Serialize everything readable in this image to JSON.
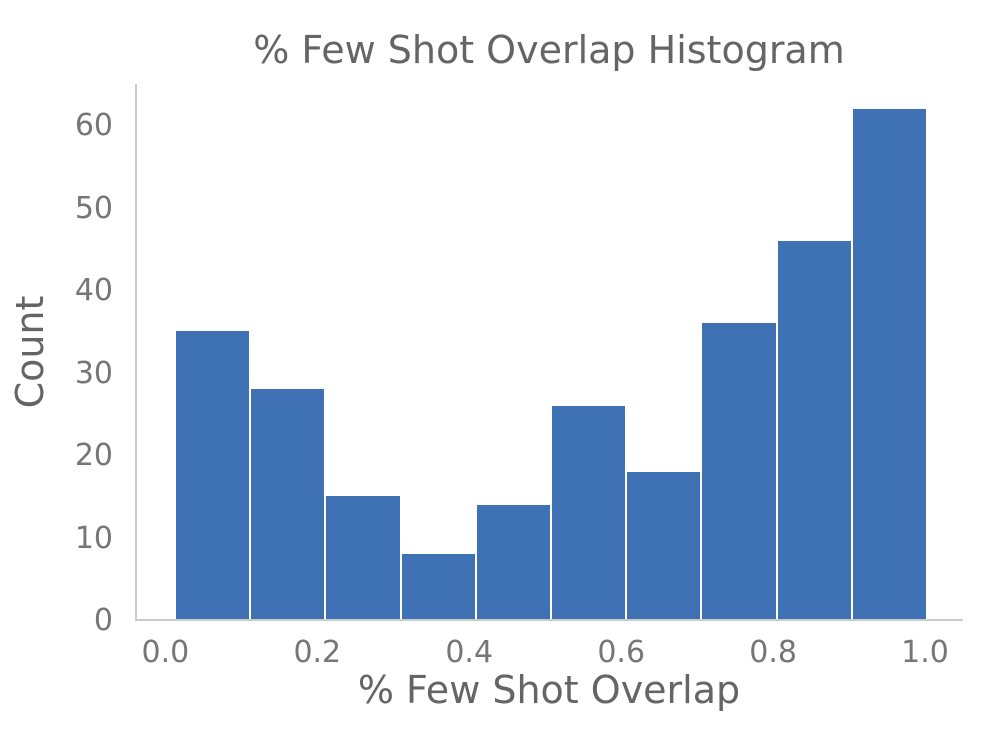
{
  "chart_data": {
    "type": "bar",
    "subtype": "histogram",
    "title": "% Few Shot Overlap Histogram",
    "xlabel": "% Few Shot Overlap",
    "ylabel": "Count",
    "bin_edges": [
      0.01,
      0.109,
      0.208,
      0.307,
      0.406,
      0.505,
      0.604,
      0.703,
      0.802,
      0.901,
      1.0
    ],
    "values": [
      35,
      28,
      15,
      8,
      14,
      26,
      18,
      36,
      46,
      62
    ],
    "x_tick_labels": [
      "0.0",
      "0.2",
      "0.4",
      "0.6",
      "0.8",
      "1.0"
    ],
    "x_tick_values": [
      0.0,
      0.2,
      0.4,
      0.6,
      0.8,
      1.0
    ],
    "y_tick_values": [
      0,
      10,
      20,
      30,
      40,
      50,
      60
    ],
    "xlim": [
      -0.04,
      1.05
    ],
    "ylim": [
      0,
      65.1
    ],
    "grid": false,
    "legend": null,
    "colors": {
      "bar": "#3E72B5",
      "bar_edge": "#FFFFFF",
      "axis": "#CBCBCB",
      "title_text": "#656565",
      "tick_text": "#767676",
      "background": "#FFFFFF"
    }
  }
}
